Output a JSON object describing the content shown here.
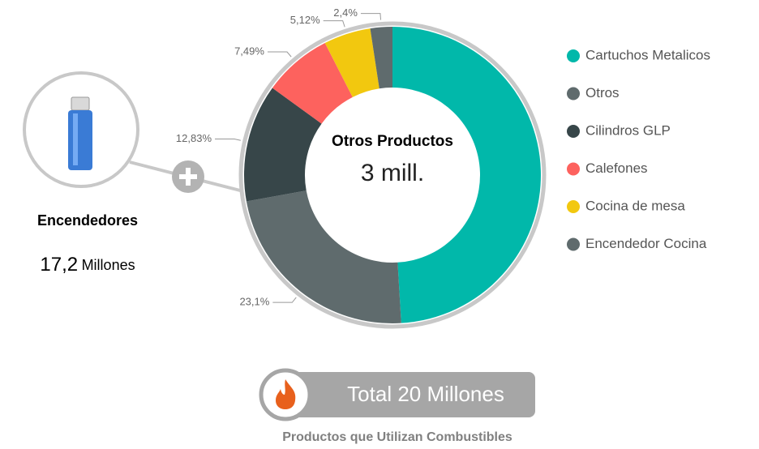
{
  "chart_data": {
    "type": "donut",
    "center_title": "Otros Productos",
    "center_value": "3 mill.",
    "categories": [
      "Cartuchos Metalicos",
      "Otros",
      "Cilindros GLP",
      "Calefones",
      "Cocina de mesa",
      "Encendedor Cocina"
    ],
    "values": [
      49.06,
      23.1,
      12.83,
      7.49,
      5.12,
      2.4
    ],
    "value_labels": [
      null,
      "23,1%",
      "12,83%",
      "7,49%",
      "5,12%",
      "2,4%"
    ],
    "colors": [
      "#01b8aa",
      "#5f6b6d",
      "#374649",
      "#fd625e",
      "#f2c80f",
      "#5f6b6d"
    ],
    "legend": "right"
  },
  "lighter": {
    "title": "Encendedores",
    "value": "17,2",
    "unit": "Millones"
  },
  "total": "Total 20 Millones",
  "footer": "Productos que Utilizan Combustibles"
}
